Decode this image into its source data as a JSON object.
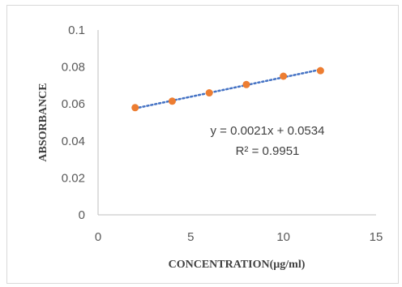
{
  "chart_data": {
    "type": "scatter",
    "title": "",
    "xlabel": "CONCENTRATION(µg/ml)",
    "ylabel": "ABSORBANCE",
    "xlim": [
      0,
      15
    ],
    "ylim": [
      0,
      0.1
    ],
    "x_ticks": [
      "0",
      "5",
      "10",
      "15"
    ],
    "y_ticks": [
      "0",
      "0.02",
      "0.04",
      "0.06",
      "0.08",
      "0.1"
    ],
    "x_tick_values": [
      0,
      5,
      10,
      15
    ],
    "y_tick_values": [
      0,
      0.02,
      0.04,
      0.06,
      0.08,
      0.1
    ],
    "series": [
      {
        "x": [
          2,
          4,
          6,
          8,
          10,
          12
        ],
        "y": [
          0.058,
          0.0615,
          0.066,
          0.0705,
          0.075,
          0.078
        ],
        "color": "#ed7d31"
      }
    ],
    "trendline": {
      "type": "linear",
      "slope": 0.0021,
      "intercept": 0.0534,
      "color": "#4472c4",
      "style": "dotted"
    },
    "annotations": {
      "equation": "y = 0.0021x + 0.0534",
      "r_squared": "R² = 0.9951"
    },
    "grid": false
  }
}
